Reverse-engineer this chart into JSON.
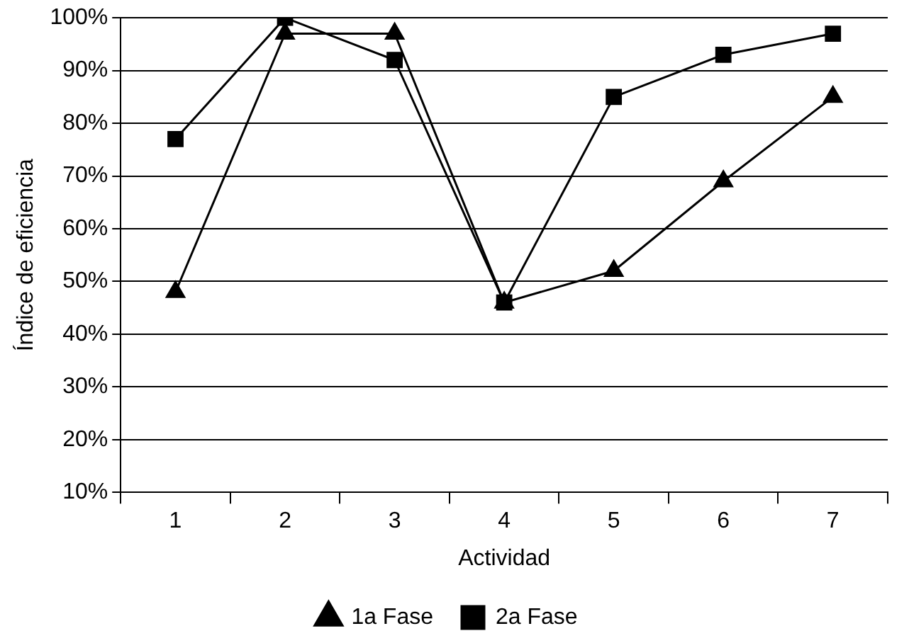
{
  "chart_data": {
    "type": "line",
    "xlabel": "Actividad",
    "ylabel": "Índice de eficiencia",
    "categories": [
      "1",
      "2",
      "3",
      "4",
      "5",
      "6",
      "7"
    ],
    "series": [
      {
        "name": "1a Fase",
        "color": "#000000",
        "marker": "triangle",
        "values": [
          48,
          97,
          97,
          46,
          52,
          69,
          85
        ]
      },
      {
        "name": "2a Fase",
        "color": "#000000",
        "marker": "square",
        "values": [
          77,
          100,
          92,
          46,
          85,
          93,
          97
        ]
      }
    ],
    "ylim": [
      10,
      100
    ],
    "yticks": [
      {
        "value": 10,
        "label": "10%"
      },
      {
        "value": 20,
        "label": "20%"
      },
      {
        "value": 30,
        "label": "30%"
      },
      {
        "value": 40,
        "label": "40%"
      },
      {
        "value": 50,
        "label": "50%"
      },
      {
        "value": 60,
        "label": "60%"
      },
      {
        "value": 70,
        "label": "70%"
      },
      {
        "value": 80,
        "label": "80%"
      },
      {
        "value": 90,
        "label": "90%"
      },
      {
        "value": 100,
        "label": "100%"
      }
    ],
    "grid": "y",
    "legend": "bottom",
    "line_style": "solid"
  }
}
